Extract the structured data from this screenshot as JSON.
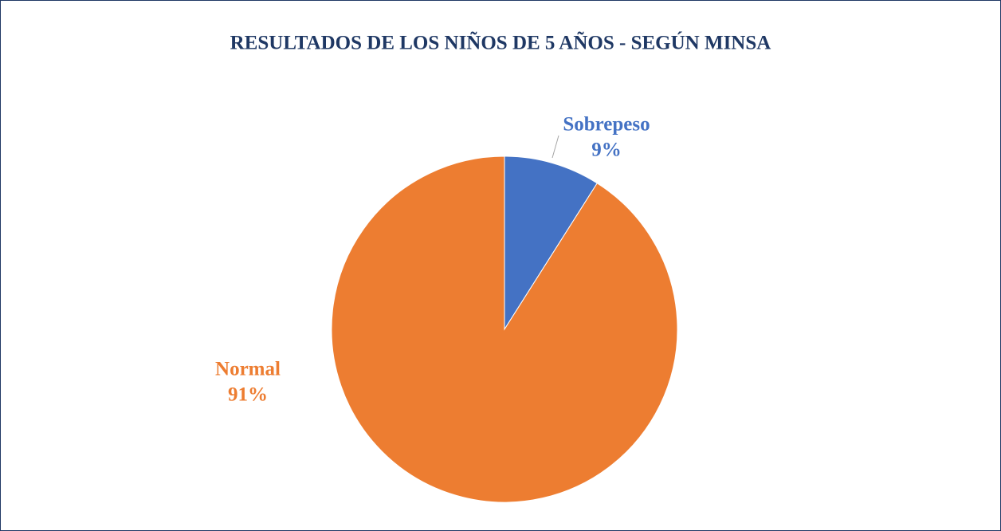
{
  "chart_data": {
    "type": "pie",
    "title": "RESULTADOS DE LOS NIÑOS DE 5 AÑOS - SEGÚN MINSA",
    "categories": [
      "Sobrepeso",
      "Normal"
    ],
    "values": [
      9,
      91
    ],
    "value_labels": [
      "9%",
      "91%"
    ],
    "colors": [
      "#4472c4",
      "#ed7d31"
    ]
  }
}
